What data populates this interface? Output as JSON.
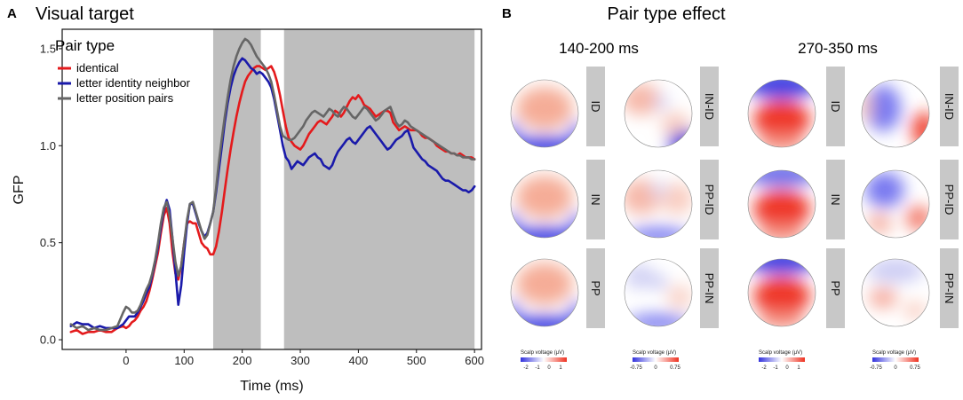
{
  "panel_a": {
    "letter": "A",
    "chart_data": {
      "type": "line",
      "title": "Visual target",
      "xlabel": "Time (ms)",
      "ylabel": "GFP",
      "xlim": [
        -110,
        612
      ],
      "ylim": [
        -0.05,
        1.6
      ],
      "xticks": [
        0,
        100,
        200,
        300,
        400,
        500,
        600
      ],
      "yticks": [
        0.0,
        0.5,
        1.0,
        1.5
      ],
      "xtick_labels": [
        "0",
        "100",
        "200",
        "300",
        "400",
        "500",
        "600"
      ],
      "ytick_labels": [
        "0.0",
        "0.5",
        "1.0",
        "1.5"
      ],
      "legend": {
        "title": "Pair type",
        "position": "top-left"
      },
      "shaded_intervals": [
        [
          150,
          232
        ],
        [
          272,
          600
        ]
      ],
      "series": [
        {
          "name": "identical",
          "color": "#e41a1c",
          "x": [
            -95,
            -85,
            -75,
            -65,
            -55,
            -45,
            -35,
            -25,
            -15,
            -5,
            0,
            5,
            10,
            15,
            20,
            25,
            30,
            35,
            40,
            45,
            50,
            55,
            60,
            65,
            70,
            75,
            80,
            85,
            90,
            95,
            100,
            105,
            110,
            115,
            120,
            125,
            130,
            135,
            140,
            145,
            150,
            155,
            160,
            165,
            170,
            175,
            180,
            185,
            190,
            195,
            200,
            205,
            210,
            215,
            220,
            225,
            230,
            235,
            240,
            245,
            250,
            255,
            260,
            265,
            270,
            275,
            280,
            285,
            290,
            295,
            300,
            305,
            310,
            315,
            320,
            325,
            330,
            335,
            340,
            345,
            350,
            355,
            360,
            365,
            370,
            375,
            380,
            385,
            390,
            395,
            400,
            405,
            410,
            415,
            420,
            425,
            430,
            435,
            440,
            445,
            450,
            455,
            460,
            465,
            470,
            475,
            480,
            485,
            490,
            495,
            500,
            505,
            510,
            515,
            520,
            525,
            530,
            535,
            540,
            545,
            550,
            555,
            560,
            565,
            570,
            575,
            580,
            585,
            590,
            595,
            600
          ],
          "y": [
            0.04,
            0.05,
            0.03,
            0.04,
            0.04,
            0.05,
            0.04,
            0.04,
            0.06,
            0.07,
            0.06,
            0.07,
            0.09,
            0.1,
            0.12,
            0.15,
            0.17,
            0.2,
            0.25,
            0.31,
            0.38,
            0.45,
            0.55,
            0.64,
            0.68,
            0.6,
            0.45,
            0.34,
            0.31,
            0.38,
            0.5,
            0.6,
            0.61,
            0.6,
            0.6,
            0.55,
            0.5,
            0.48,
            0.47,
            0.44,
            0.44,
            0.48,
            0.56,
            0.66,
            0.77,
            0.88,
            0.98,
            1.07,
            1.15,
            1.22,
            1.28,
            1.33,
            1.36,
            1.38,
            1.4,
            1.41,
            1.41,
            1.4,
            1.39,
            1.4,
            1.41,
            1.38,
            1.33,
            1.26,
            1.18,
            1.1,
            1.04,
            1.02,
            1.0,
            0.99,
            0.98,
            1.0,
            1.03,
            1.06,
            1.08,
            1.1,
            1.12,
            1.13,
            1.12,
            1.11,
            1.13,
            1.15,
            1.18,
            1.17,
            1.15,
            1.17,
            1.2,
            1.23,
            1.25,
            1.24,
            1.26,
            1.24,
            1.21,
            1.2,
            1.19,
            1.17,
            1.15,
            1.16,
            1.17,
            1.18,
            1.18,
            1.17,
            1.12,
            1.1,
            1.08,
            1.09,
            1.1,
            1.09,
            1.08,
            1.08,
            1.08,
            1.07,
            1.05,
            1.04,
            1.04,
            1.03,
            1.02,
            1.0,
            0.99,
            0.98,
            0.97,
            0.97,
            0.96,
            0.96,
            0.95,
            0.96,
            0.95,
            0.94,
            0.94,
            0.94,
            0.93
          ]
        },
        {
          "name": "letter identity neighbor",
          "color": "#1a1aaa",
          "x": [
            -95,
            -85,
            -75,
            -65,
            -55,
            -45,
            -35,
            -25,
            -15,
            -5,
            0,
            5,
            10,
            15,
            20,
            25,
            30,
            35,
            40,
            45,
            50,
            55,
            60,
            65,
            70,
            75,
            80,
            85,
            90,
            95,
            100,
            105,
            110,
            115,
            120,
            125,
            130,
            135,
            140,
            145,
            150,
            155,
            160,
            165,
            170,
            175,
            180,
            185,
            190,
            195,
            200,
            205,
            210,
            215,
            220,
            225,
            230,
            235,
            240,
            245,
            250,
            255,
            260,
            265,
            270,
            275,
            280,
            285,
            290,
            295,
            300,
            305,
            310,
            315,
            320,
            325,
            330,
            335,
            340,
            345,
            350,
            355,
            360,
            365,
            370,
            375,
            380,
            385,
            390,
            395,
            400,
            405,
            410,
            415,
            420,
            425,
            430,
            435,
            440,
            445,
            450,
            455,
            460,
            465,
            470,
            475,
            480,
            485,
            490,
            495,
            500,
            505,
            510,
            515,
            520,
            525,
            530,
            535,
            540,
            545,
            550,
            555,
            560,
            565,
            570,
            575,
            580,
            585,
            590,
            595,
            600
          ],
          "y": [
            0.07,
            0.09,
            0.08,
            0.08,
            0.06,
            0.07,
            0.06,
            0.06,
            0.06,
            0.08,
            0.1,
            0.12,
            0.12,
            0.12,
            0.14,
            0.17,
            0.2,
            0.24,
            0.27,
            0.33,
            0.4,
            0.48,
            0.58,
            0.67,
            0.72,
            0.67,
            0.52,
            0.35,
            0.18,
            0.28,
            0.45,
            0.6,
            0.7,
            0.7,
            0.65,
            0.6,
            0.56,
            0.53,
            0.55,
            0.6,
            0.66,
            0.76,
            0.88,
            1.0,
            1.12,
            1.22,
            1.3,
            1.36,
            1.4,
            1.43,
            1.45,
            1.44,
            1.42,
            1.4,
            1.39,
            1.37,
            1.38,
            1.37,
            1.35,
            1.33,
            1.3,
            1.24,
            1.16,
            1.08,
            1.0,
            0.94,
            0.92,
            0.88,
            0.9,
            0.92,
            0.91,
            0.9,
            0.92,
            0.94,
            0.95,
            0.96,
            0.94,
            0.93,
            0.9,
            0.89,
            0.88,
            0.9,
            0.94,
            0.97,
            0.99,
            1.01,
            1.03,
            1.04,
            1.02,
            1.01,
            1.03,
            1.05,
            1.07,
            1.09,
            1.1,
            1.08,
            1.06,
            1.04,
            1.02,
            1.0,
            0.98,
            0.99,
            1.01,
            1.03,
            1.04,
            1.05,
            1.07,
            1.08,
            1.04,
            0.99,
            0.97,
            0.95,
            0.93,
            0.92,
            0.9,
            0.89,
            0.88,
            0.87,
            0.85,
            0.83,
            0.82,
            0.82,
            0.81,
            0.8,
            0.79,
            0.78,
            0.77,
            0.77,
            0.76,
            0.77,
            0.79
          ]
        },
        {
          "name": "letter position pairs",
          "color": "#666666",
          "x": [
            -95,
            -85,
            -75,
            -65,
            -55,
            -45,
            -35,
            -25,
            -15,
            -5,
            0,
            5,
            10,
            15,
            20,
            25,
            30,
            35,
            40,
            45,
            50,
            55,
            60,
            65,
            70,
            75,
            80,
            85,
            90,
            95,
            100,
            105,
            110,
            115,
            120,
            125,
            130,
            135,
            140,
            145,
            150,
            155,
            160,
            165,
            170,
            175,
            180,
            185,
            190,
            195,
            200,
            205,
            210,
            215,
            220,
            225,
            230,
            235,
            240,
            245,
            250,
            255,
            260,
            265,
            270,
            275,
            280,
            285,
            290,
            295,
            300,
            305,
            310,
            315,
            320,
            325,
            330,
            335,
            340,
            345,
            350,
            355,
            360,
            365,
            370,
            375,
            380,
            385,
            390,
            395,
            400,
            405,
            410,
            415,
            420,
            425,
            430,
            435,
            440,
            445,
            450,
            455,
            460,
            465,
            470,
            475,
            480,
            485,
            490,
            495,
            500,
            505,
            510,
            515,
            520,
            525,
            530,
            535,
            540,
            545,
            550,
            555,
            560,
            565,
            570,
            575,
            580,
            585,
            590,
            595,
            600
          ],
          "y": [
            0.08,
            0.06,
            0.07,
            0.05,
            0.06,
            0.05,
            0.05,
            0.06,
            0.07,
            0.14,
            0.17,
            0.16,
            0.14,
            0.14,
            0.15,
            0.18,
            0.22,
            0.26,
            0.29,
            0.34,
            0.41,
            0.5,
            0.6,
            0.68,
            0.71,
            0.64,
            0.52,
            0.4,
            0.33,
            0.38,
            0.5,
            0.62,
            0.7,
            0.71,
            0.66,
            0.61,
            0.56,
            0.52,
            0.54,
            0.6,
            0.66,
            0.78,
            0.92,
            1.04,
            1.15,
            1.25,
            1.34,
            1.41,
            1.46,
            1.5,
            1.53,
            1.55,
            1.54,
            1.52,
            1.49,
            1.46,
            1.44,
            1.42,
            1.4,
            1.37,
            1.33,
            1.26,
            1.18,
            1.1,
            1.05,
            1.04,
            1.03,
            1.03,
            1.04,
            1.06,
            1.08,
            1.1,
            1.13,
            1.15,
            1.17,
            1.18,
            1.17,
            1.16,
            1.15,
            1.17,
            1.19,
            1.18,
            1.16,
            1.15,
            1.18,
            1.2,
            1.19,
            1.17,
            1.15,
            1.14,
            1.16,
            1.18,
            1.2,
            1.19,
            1.17,
            1.15,
            1.13,
            1.14,
            1.16,
            1.18,
            1.19,
            1.2,
            1.16,
            1.12,
            1.1,
            1.11,
            1.13,
            1.12,
            1.1,
            1.09,
            1.08,
            1.07,
            1.06,
            1.05,
            1.04,
            1.03,
            1.02,
            1.01,
            1.0,
            0.99,
            0.98,
            0.97,
            0.96,
            0.96,
            0.95,
            0.95,
            0.94,
            0.94,
            0.94,
            0.93,
            0.93
          ]
        }
      ]
    }
  },
  "panel_b": {
    "letter": "B",
    "title": "Pair type effect",
    "ranges": [
      "140-200 ms",
      "270-350 ms"
    ],
    "groups": [
      {
        "rows": [
          {
            "left_label": "ID",
            "right_label": "IN-ID"
          },
          {
            "left_label": "IN",
            "right_label": "PP-ID"
          },
          {
            "left_label": "PP",
            "right_label": "PP-IN"
          }
        ],
        "colorbars": [
          {
            "title": "Scalp voltage (μV)",
            "ticks": [
              "-2",
              "-1",
              "0",
              "1"
            ]
          },
          {
            "title": "Scalp voltage (μV)",
            "ticks": [
              "-0.75",
              "0",
              "0.75"
            ]
          }
        ]
      },
      {
        "rows": [
          {
            "left_label": "ID",
            "right_label": "IN-ID"
          },
          {
            "left_label": "IN",
            "right_label": "PP-ID"
          },
          {
            "left_label": "PP",
            "right_label": "PP-IN"
          }
        ],
        "colorbars": [
          {
            "title": "Scalp voltage (μV)",
            "ticks": [
              "-2",
              "-1",
              "0",
              "1"
            ]
          },
          {
            "title": "Scalp voltage (μV)",
            "ticks": [
              "-0.75",
              "0",
              "0.75"
            ]
          }
        ]
      }
    ]
  },
  "colors": {
    "shade": "#bebebe",
    "strip": "#c8c8c8",
    "negative": "#3333dd",
    "positive": "#ee3322"
  }
}
